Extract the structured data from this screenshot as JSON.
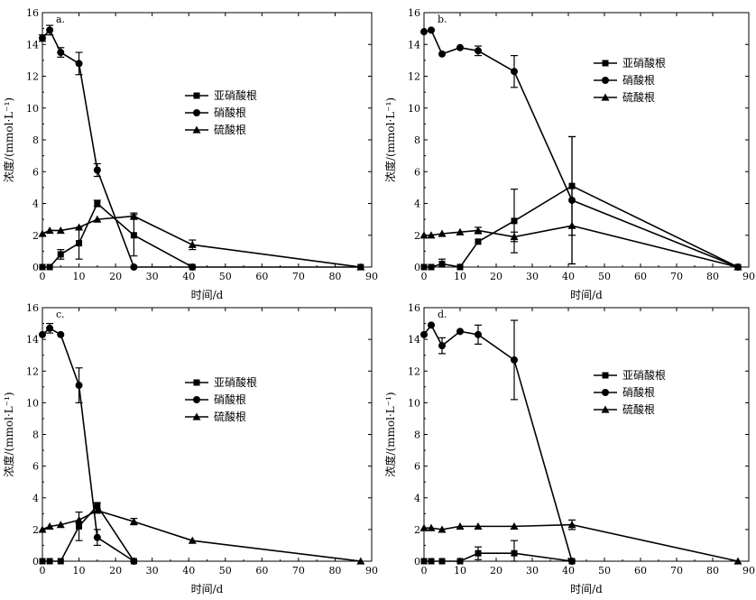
{
  "chart_data": [
    {
      "type": "line",
      "panel_label": "a.",
      "xlabel": "时间/d",
      "ylabel": "浓度/(mmol·L⁻¹)",
      "xlim": [
        0,
        90
      ],
      "ylim": [
        0,
        16
      ],
      "xticks": [
        0,
        10,
        20,
        30,
        40,
        50,
        60,
        70,
        80,
        90
      ],
      "yticks": [
        0,
        2,
        4,
        6,
        8,
        10,
        12,
        14,
        16
      ],
      "legend_position": "center-right",
      "series": [
        {
          "name": "亚硝酸根",
          "marker": "square",
          "x": [
            0,
            2,
            5,
            10,
            15,
            25,
            41,
            87
          ],
          "y": [
            0,
            0,
            0.8,
            1.5,
            4.0,
            2.0,
            0,
            0
          ],
          "err": [
            0,
            0,
            0.3,
            1.0,
            0.2,
            1.3,
            0,
            0
          ]
        },
        {
          "name": "硝酸根",
          "marker": "circle",
          "x": [
            0,
            2,
            5,
            10,
            15,
            25,
            41
          ],
          "y": [
            14.4,
            14.9,
            13.5,
            12.8,
            6.1,
            0,
            0
          ],
          "err": [
            0.2,
            0.3,
            0.3,
            0.7,
            0.4,
            0,
            0
          ]
        },
        {
          "name": "硫酸根",
          "marker": "triangle",
          "x": [
            0,
            2,
            5,
            10,
            15,
            25,
            41,
            87
          ],
          "y": [
            2.1,
            2.3,
            2.3,
            2.5,
            3.0,
            3.2,
            1.4,
            0
          ],
          "err": [
            0,
            0,
            0,
            0,
            0,
            0.2,
            0.3,
            0
          ]
        }
      ]
    },
    {
      "type": "line",
      "panel_label": "b.",
      "xlabel": "时间/d",
      "ylabel": "浓度/(mmol·L⁻¹)",
      "xlim": [
        0,
        90
      ],
      "ylim": [
        0,
        16
      ],
      "xticks": [
        0,
        10,
        20,
        30,
        40,
        50,
        60,
        70,
        80,
        90
      ],
      "yticks": [
        0,
        2,
        4,
        6,
        8,
        10,
        12,
        14,
        16
      ],
      "legend_position": "top-right",
      "series": [
        {
          "name": "亚硝酸根",
          "marker": "square",
          "x": [
            0,
            2,
            5,
            10,
            15,
            25,
            41,
            87
          ],
          "y": [
            0,
            0,
            0.2,
            0,
            1.6,
            2.9,
            5.1,
            0
          ],
          "err": [
            0,
            0,
            0.3,
            0,
            0,
            2.0,
            3.1,
            0
          ]
        },
        {
          "name": "硝酸根",
          "marker": "circle",
          "x": [
            0,
            2,
            5,
            10,
            15,
            25,
            41,
            87
          ],
          "y": [
            14.8,
            14.9,
            13.4,
            13.8,
            13.6,
            12.3,
            4.2,
            0
          ],
          "err": [
            0,
            0,
            0,
            0,
            0.3,
            1.0,
            4.0,
            0
          ]
        },
        {
          "name": "硫酸根",
          "marker": "triangle",
          "x": [
            0,
            2,
            5,
            10,
            15,
            25,
            41,
            87
          ],
          "y": [
            2.0,
            2.0,
            2.1,
            2.2,
            2.3,
            1.9,
            2.6,
            0
          ],
          "err": [
            0,
            0,
            0,
            0,
            0.2,
            0.3,
            2.4,
            0
          ]
        }
      ]
    },
    {
      "type": "line",
      "panel_label": "c.",
      "xlabel": "时间/d",
      "ylabel": "浓度/(mmol·L⁻¹)",
      "xlim": [
        0,
        90
      ],
      "ylim": [
        0,
        16
      ],
      "xticks": [
        0,
        10,
        20,
        30,
        40,
        50,
        60,
        70,
        80,
        90
      ],
      "yticks": [
        0,
        2,
        4,
        6,
        8,
        10,
        12,
        14,
        16
      ],
      "legend_position": "center-right",
      "series": [
        {
          "name": "亚硝酸根",
          "marker": "square",
          "x": [
            0,
            2,
            5,
            10,
            15,
            25
          ],
          "y": [
            0,
            0,
            0,
            2.2,
            3.5,
            0
          ],
          "err": [
            0,
            0,
            0,
            0.9,
            0.2,
            0
          ]
        },
        {
          "name": "硝酸根",
          "marker": "circle",
          "x": [
            0,
            2,
            5,
            10,
            15,
            25
          ],
          "y": [
            14.3,
            14.7,
            14.3,
            11.1,
            1.5,
            0
          ],
          "err": [
            0,
            0.3,
            0,
            1.1,
            0.5,
            0
          ]
        },
        {
          "name": "硫酸根",
          "marker": "triangle",
          "x": [
            0,
            2,
            5,
            10,
            15,
            25,
            41,
            87
          ],
          "y": [
            2.0,
            2.2,
            2.3,
            2.6,
            3.2,
            2.5,
            1.3,
            0
          ],
          "err": [
            0,
            0,
            0,
            0,
            0,
            0.2,
            0,
            0
          ]
        }
      ]
    },
    {
      "type": "line",
      "panel_label": "d.",
      "xlabel": "时间/d",
      "ylabel": "浓度/(mmol·L⁻¹)",
      "xlim": [
        0,
        90
      ],
      "ylim": [
        0,
        16
      ],
      "xticks": [
        0,
        10,
        20,
        30,
        40,
        50,
        60,
        70,
        80,
        90
      ],
      "yticks": [
        0,
        2,
        4,
        6,
        8,
        10,
        12,
        14,
        16
      ],
      "legend_position": "center-right",
      "series": [
        {
          "name": "亚硝酸根",
          "marker": "square",
          "x": [
            0,
            2,
            5,
            10,
            15,
            25,
            41
          ],
          "y": [
            0,
            0,
            0,
            0,
            0.5,
            0.5,
            0
          ],
          "err": [
            0,
            0,
            0,
            0,
            0.4,
            0.8,
            0
          ]
        },
        {
          "name": "硝酸根",
          "marker": "circle",
          "x": [
            0,
            2,
            5,
            10,
            15,
            25,
            41
          ],
          "y": [
            14.3,
            14.9,
            13.6,
            14.5,
            14.3,
            12.7,
            0
          ],
          "err": [
            0,
            0,
            0.5,
            0,
            0.6,
            2.5,
            0
          ]
        },
        {
          "name": "硫酸根",
          "marker": "triangle",
          "x": [
            0,
            2,
            5,
            10,
            15,
            25,
            41,
            87
          ],
          "y": [
            2.1,
            2.1,
            2.0,
            2.2,
            2.2,
            2.2,
            2.3,
            0
          ],
          "err": [
            0,
            0,
            0,
            0,
            0,
            0,
            0.3,
            0
          ]
        }
      ]
    }
  ]
}
